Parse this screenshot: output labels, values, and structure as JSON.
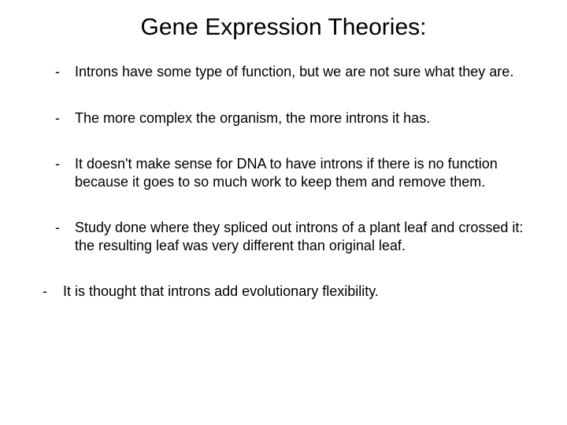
{
  "title": "Gene Expression Theories:",
  "title_fontsize": 30,
  "body_fontsize": 18,
  "text_color": "#000000",
  "background_color": "#ffffff",
  "font_family": "Trebuchet MS",
  "bullets": [
    {
      "level": 2,
      "text": "Introns have some type of function, but we are not sure what they are."
    },
    {
      "level": 2,
      "text": "The more complex the organism, the more introns it has."
    },
    {
      "level": 2,
      "text": "It doesn't make sense for DNA to have introns if there is no function because it goes to so much work to keep them and remove them."
    },
    {
      "level": 2,
      "text": "Study done where they spliced out introns of a plant leaf and crossed it:  the resulting leaf was very different than original leaf."
    },
    {
      "level": 1,
      "text": "It is thought that introns add evolutionary flexibility."
    }
  ]
}
